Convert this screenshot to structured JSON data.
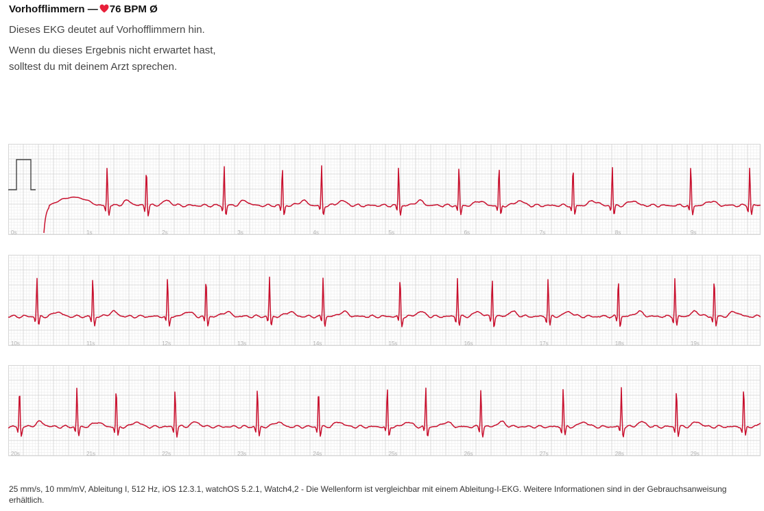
{
  "header": {
    "rhythm": "Vorhofflimmern",
    "separator": "—",
    "heart_icon": "heart-icon",
    "bpm": "76 BPM",
    "avg_symbol": "Ø",
    "description": "Dieses EKG deutet auf Vorhofflimmern hin.",
    "advice": "Wenn du dieses Ergebnis nicht erwartet hast, solltest du mit deinem Arzt sprechen."
  },
  "colors": {
    "trace": "#c8102e",
    "grid_minor": "#ececec",
    "grid_major": "#d2d2d2",
    "label": "#b0b0b0"
  },
  "strips": [
    {
      "labels": [
        "0s",
        "1s",
        "2s",
        "3s",
        "4s",
        "5s",
        "6s",
        "7s",
        "8s",
        "9s"
      ],
      "beats": [
        1.31,
        1.83,
        2.86,
        3.63,
        4.15,
        5.17,
        5.97,
        6.5,
        7.48,
        8.0,
        9.04,
        9.82
      ]
    },
    {
      "labels": [
        "10s",
        "11s",
        "12s",
        "13s",
        "14s",
        "15s",
        "16s",
        "17s",
        "18s",
        "19s"
      ],
      "beats": [
        10.38,
        11.12,
        12.11,
        12.62,
        13.46,
        14.17,
        15.19,
        15.95,
        16.41,
        17.15,
        18.08,
        18.83,
        19.35
      ]
    },
    {
      "labels": [
        "20s",
        "21s",
        "22s",
        "23s",
        "24s",
        "25s",
        "26s",
        "27s",
        "28s",
        "29s"
      ],
      "beats": [
        20.15,
        20.91,
        21.43,
        22.21,
        23.3,
        24.11,
        25.02,
        25.53,
        26.26,
        27.35,
        28.12,
        28.85,
        29.74
      ]
    }
  ],
  "footnote": "25 mm/s, 10 mm/mV, Ableitung I, 512 Hz, iOS 12.3.1, watchOS 5.2.1, Watch4,2 - Die Wellenform ist vergleichbar mit einem Ableitung-I-EKG. Weitere Informationen sind in der Gebrauchsanweisung erhältlich."
}
